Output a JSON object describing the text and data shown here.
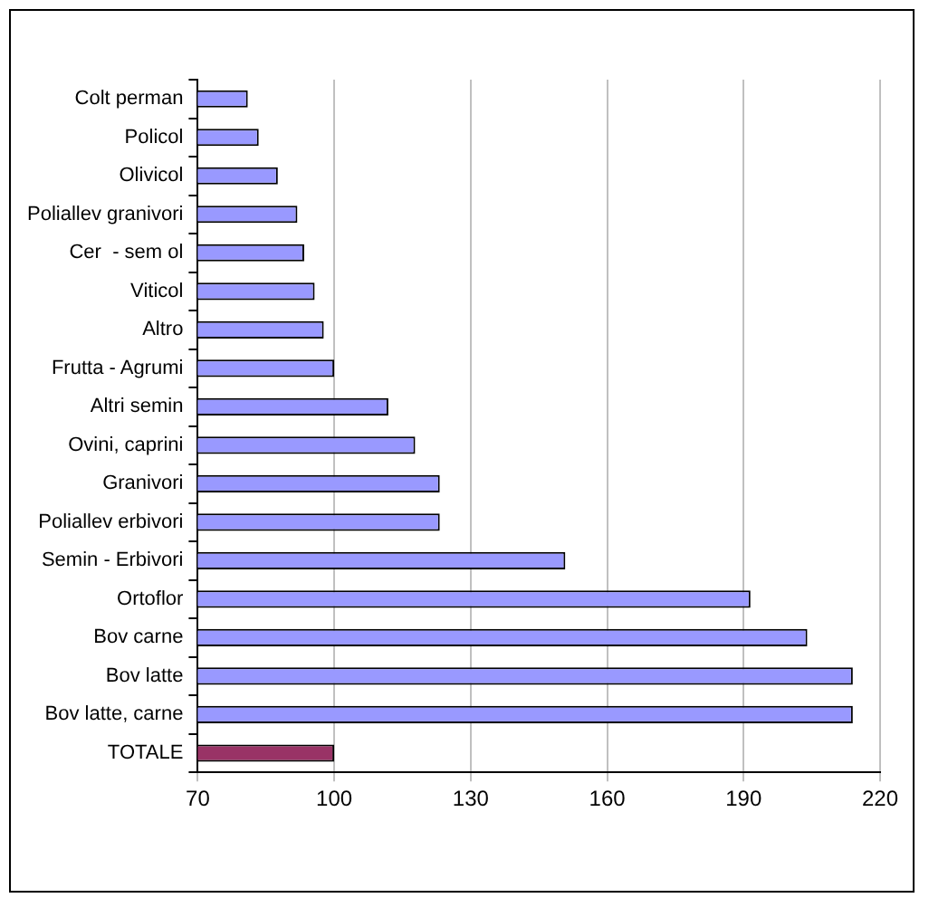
{
  "chart_data": {
    "type": "bar",
    "orientation": "horizontal",
    "categories": [
      "Colt perman",
      "Policol",
      "Olivicol",
      "Poliallev granivori",
      "Cer  - sem ol",
      "Viticol",
      "Altro",
      "Frutta - Agrumi",
      "Altri semin",
      "Ovini, caprini",
      "Granivori",
      "Poliallev erbivori",
      "Semin - Erbivori",
      "Ortoflor",
      "Bov carne",
      "Bov latte",
      "Bov latte, carne",
      "TOTALE"
    ],
    "values": [
      81,
      83.4,
      87.6,
      91.9,
      93.4,
      95.7,
      97.7,
      100,
      111.9,
      117.8,
      123.2,
      123.2,
      150.8,
      191.5,
      204,
      214,
      214,
      100
    ],
    "colors": [
      "#9999ff",
      "#9999ff",
      "#9999ff",
      "#9999ff",
      "#9999ff",
      "#9999ff",
      "#9999ff",
      "#9999ff",
      "#9999ff",
      "#9999ff",
      "#9999ff",
      "#9999ff",
      "#9999ff",
      "#9999ff",
      "#9999ff",
      "#9999ff",
      "#9999ff",
      "#993366"
    ],
    "xlim": [
      70,
      220
    ],
    "xticks": [
      70,
      100,
      130,
      160,
      190,
      220
    ],
    "grid": "x",
    "legend": false
  }
}
